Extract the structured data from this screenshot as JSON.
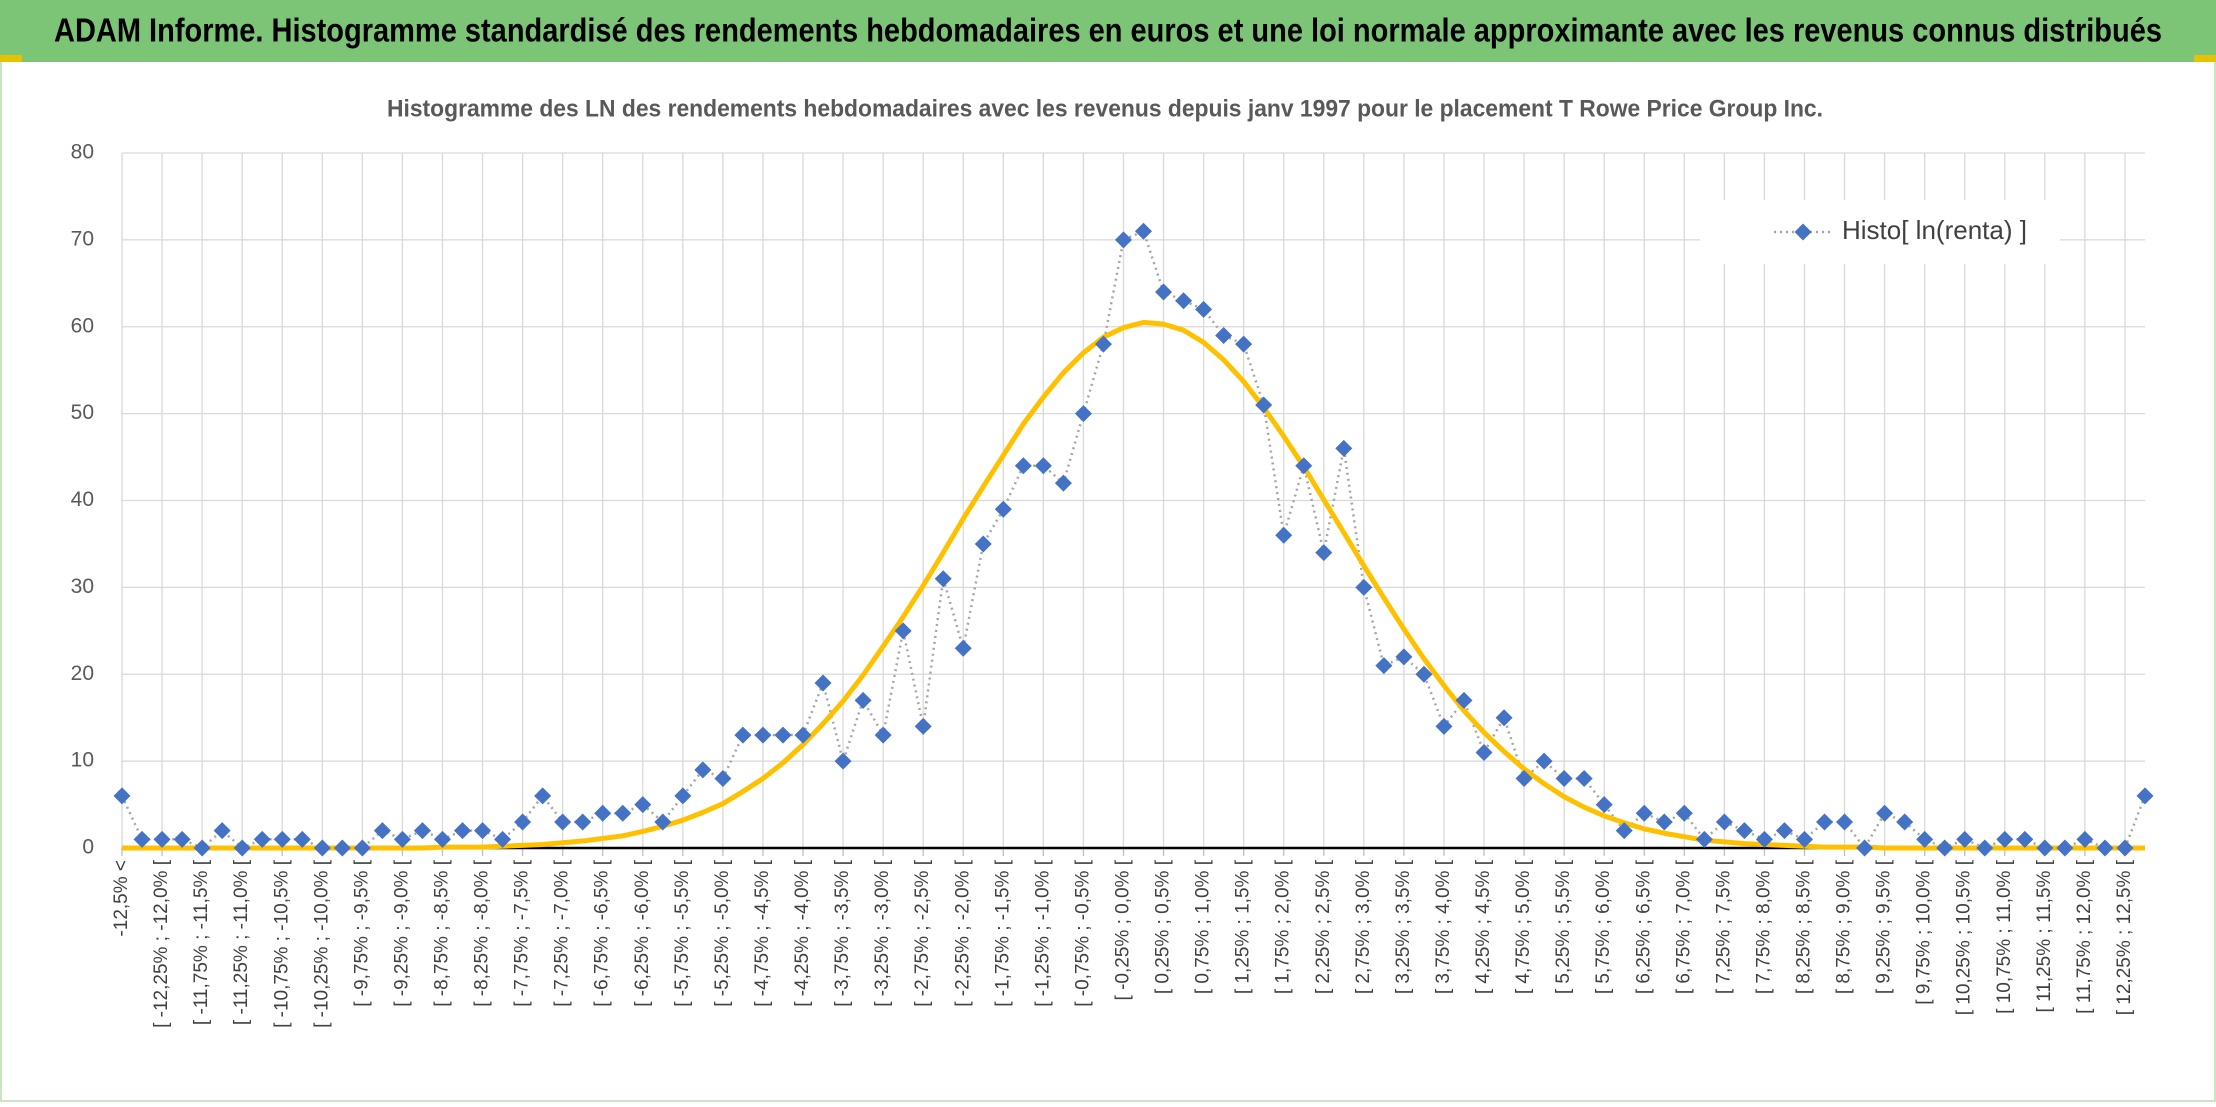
{
  "header": {
    "title": "ADAM Informe. Histogramme standardisé des rendements hebdomadaires en euros et une loi normale approximante avec les revenus connus distribués"
  },
  "chart_data": {
    "type": "line",
    "title": "Histogramme des LN des rendements hebdomadaires avec les revenus depuis janv 1997 pour le placement T Rowe Price Group Inc.",
    "categories": [
      "-12,5% <",
      null,
      "[ -12,25% ; -12,0% [",
      null,
      "[ -11,75% ; -11,5% [",
      null,
      "[ -11,25% ; -11,0% [",
      null,
      "[ -10,75% ; -10,5% [",
      null,
      "[ -10,25% ; -10,0% [",
      null,
      "[ -9,75% ; -9,5% [",
      null,
      "[ -9,25% ; -9,0% [",
      null,
      "[ -8,75% ; -8,5% [",
      null,
      "[ -8,25% ; -8,0% [",
      null,
      "[ -7,75% ; -7,5% [",
      null,
      "[ -7,25% ; -7,0% [",
      null,
      "[ -6,75% ; -6,5% [",
      null,
      "[ -6,25% ; -6,0% [",
      null,
      "[ -5,75% ; -5,5% [",
      null,
      "[ -5,25% ; -5,0% [",
      null,
      "[ -4,75% ; -4,5% [",
      null,
      "[ -4,25% ; -4,0% [",
      null,
      "[ -3,75% ; -3,5% [",
      null,
      "[ -3,25% ; -3,0% [",
      null,
      "[ -2,75% ; -2,5% [",
      null,
      "[ -2,25% ; -2,0% [",
      null,
      "[ -1,75% ; -1,5% [",
      null,
      "[ -1,25% ; -1,0% [",
      null,
      "[ -0,75% ; -0,5% [",
      null,
      "[ -0,25% ; 0,0% [",
      null,
      "[ 0,25% ; 0,5% [",
      null,
      "[ 0,75% ; 1,0% [",
      null,
      "[ 1,25% ; 1,5% [",
      null,
      "[ 1,75% ; 2,0% [",
      null,
      "[ 2,25% ; 2,5% [",
      null,
      "[ 2,75% ; 3,0% [",
      null,
      "[ 3,25% ; 3,5% [",
      null,
      "[ 3,75% ; 4,0% [",
      null,
      "[ 4,25% ; 4,5% [",
      null,
      "[ 4,75% ; 5,0% [",
      null,
      "[ 5,25% ; 5,5% [",
      null,
      "[ 5,75% ; 6,0% [",
      null,
      "[ 6,25% ; 6,5% [",
      null,
      "[ 6,75% ; 7,0% [",
      null,
      "[ 7,25% ; 7,5% [",
      null,
      "[ 7,75% ; 8,0% [",
      null,
      "[ 8,25% ; 8,5% [",
      null,
      "[ 8,75% ; 9,0% [",
      null,
      "[ 9,25% ; 9,5% [",
      null,
      "[ 9,75% ; 10,0% [",
      null,
      "[ 10,25% ; 10,5% [",
      null,
      "[ 10,75% ; 11,0% [",
      null,
      "[ 11,25% ; 11,5% [",
      null,
      "[ 11,75% ; 12,0% [",
      null,
      "[ 12,25% ; 12,5% [",
      null
    ],
    "series": [
      {
        "name": "Histo[ ln(renta) ]",
        "color": "#4472c4",
        "line_color": "#a6a6a6",
        "values": [
          6,
          1,
          1,
          1,
          0,
          2,
          0,
          1,
          1,
          1,
          0,
          0,
          0,
          2,
          1,
          2,
          1,
          2,
          2,
          1,
          3,
          6,
          3,
          3,
          4,
          4,
          5,
          3,
          6,
          9,
          8,
          13,
          13,
          13,
          13,
          19,
          10,
          17,
          13,
          25,
          14,
          31,
          23,
          35,
          39,
          44,
          44,
          42,
          50,
          58,
          70,
          71,
          64,
          63,
          62,
          59,
          58,
          51,
          36,
          44,
          34,
          46,
          30,
          21,
          22,
          20,
          14,
          17,
          11,
          15,
          8,
          10,
          8,
          8,
          5,
          2,
          4,
          3,
          4,
          1,
          3,
          2,
          1,
          2,
          1,
          3,
          3,
          0,
          4,
          3,
          1,
          0,
          1,
          0,
          1,
          1,
          0,
          0,
          1,
          0,
          0,
          6
        ]
      },
      {
        "color": "#ffc000",
        "values": [
          0,
          0,
          0,
          0,
          0,
          0,
          0,
          0,
          0,
          0,
          0,
          0,
          0,
          0,
          0,
          0,
          0.1,
          0.1,
          0.1,
          0.2,
          0.3,
          0.4,
          0.6,
          0.8,
          1.1,
          1.4,
          1.9,
          2.5,
          3.2,
          4.1,
          5.1,
          6.5,
          8.0,
          9.8,
          11.9,
          14.3,
          16.9,
          19.9,
          23.2,
          26.6,
          30.2,
          34.0,
          37.9,
          41.6,
          45.2,
          48.8,
          51.9,
          54.7,
          57.0,
          58.8,
          59.9,
          60.5,
          60.3,
          59.6,
          58.2,
          56.2,
          53.7,
          50.7,
          47.4,
          43.9,
          40.1,
          36.3,
          32.5,
          28.8,
          25.2,
          21.8,
          18.7,
          15.8,
          13.3,
          11.1,
          9.1,
          7.4,
          5.9,
          4.7,
          3.7,
          2.9,
          2.2,
          1.7,
          1.3,
          0.9,
          0.7,
          0.5,
          0.4,
          0.3,
          0.2,
          0.1,
          0.1,
          0.1,
          0,
          0,
          0,
          0,
          0,
          0,
          0,
          0,
          0,
          0,
          0,
          0,
          0,
          0
        ]
      }
    ],
    "ylim": [
      0,
      80
    ],
    "yticks": [
      0,
      10,
      20,
      30,
      40,
      50,
      60,
      70,
      80
    ],
    "grid": true,
    "legend": "top-right"
  }
}
